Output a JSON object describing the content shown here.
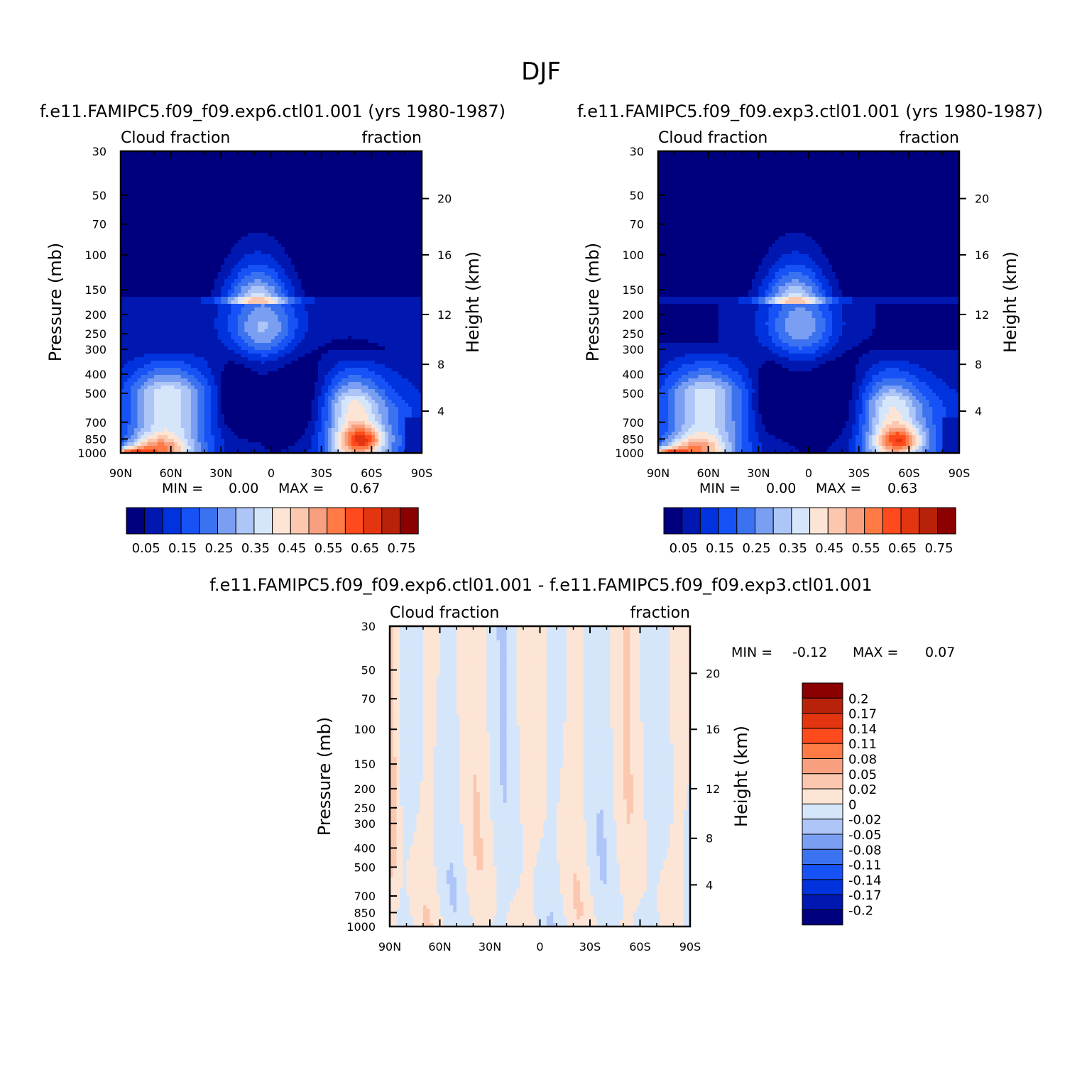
{
  "page_title": "DJF",
  "colors": {
    "main_scale": [
      "#00007f",
      "#0018b0",
      "#0033dd",
      "#1652f5",
      "#3b72f0",
      "#7a9ff2",
      "#adc5f7",
      "#d5e6fb",
      "#fde5d6",
      "#fbc7ae",
      "#f79f7e",
      "#ff7a44",
      "#ff4a1d",
      "#e23510",
      "#b8220a",
      "#8b0000"
    ],
    "diff_scale": [
      "#00007f",
      "#0018b0",
      "#0033dd",
      "#1652f5",
      "#3b72f0",
      "#7a9ff2",
      "#adc5f7",
      "#d5e6fb",
      "#fde5d6",
      "#fbc7ae",
      "#f79f7e",
      "#ff7a44",
      "#ff4a1d",
      "#e23510",
      "#b8220a",
      "#8b0000"
    ]
  },
  "panels": [
    {
      "title": "f.e11.FAMIPC5.f09_f09.exp6.ctl01.001 (yrs 1980-1987)",
      "left_label": "Cloud fraction",
      "right_label": "fraction",
      "stats": {
        "min_label": "MIN =",
        "min_value": "0.00",
        "max_label": "MAX =",
        "max_value": "0.67"
      }
    },
    {
      "title": "f.e11.FAMIPC5.f09_f09.exp3.ctl01.001 (yrs 1980-1987)",
      "left_label": "Cloud fraction",
      "right_label": "fraction",
      "stats": {
        "min_label": "MIN =",
        "min_value": "0.00",
        "max_label": "MAX =",
        "max_value": "0.63"
      }
    },
    {
      "title": "f.e11.FAMIPC5.f09_f09.exp6.ctl01.001 - f.e11.FAMIPC5.f09_f09.exp3.ctl01.001",
      "left_label": "Cloud fraction",
      "right_label": "fraction",
      "stats": {
        "min_label": "MIN =",
        "min_value": "-0.12",
        "max_label": "MAX =",
        "max_value": "0.07"
      }
    }
  ],
  "chart_data": [
    {
      "type": "heatmap",
      "title": "f.e11.FAMIPC5.f09_f09.exp6.ctl01.001 (yrs 1980-1987)",
      "xlabel": "",
      "ylabel": "Pressure (mb)",
      "y2label": "Height (km)",
      "x_ticks": [
        "90N",
        "60N",
        "30N",
        "0",
        "30S",
        "60S",
        "90S"
      ],
      "y_ticks": [
        "30",
        "50",
        "70",
        "100",
        "150",
        "200",
        "250",
        "300",
        "400",
        "500",
        "700",
        "850",
        "1000"
      ],
      "y2_ticks": [
        "20",
        "16",
        "12",
        "8",
        "4"
      ],
      "y_scale": "log",
      "ylim": [
        1000,
        30
      ],
      "colorbar_labels": [
        "0.05",
        "0.15",
        "0.25",
        "0.35",
        "0.45",
        "0.55",
        "0.65",
        "0.75"
      ],
      "min": 0.0,
      "max": 0.67
    },
    {
      "type": "heatmap",
      "title": "f.e11.FAMIPC5.f09_f09.exp3.ctl01.001 (yrs 1980-1987)",
      "xlabel": "",
      "ylabel": "Pressure (mb)",
      "y2label": "Height (km)",
      "x_ticks": [
        "90N",
        "60N",
        "30N",
        "0",
        "30S",
        "60S",
        "90S"
      ],
      "y_ticks": [
        "30",
        "50",
        "70",
        "100",
        "150",
        "200",
        "250",
        "300",
        "400",
        "500",
        "700",
        "850",
        "1000"
      ],
      "y2_ticks": [
        "20",
        "16",
        "12",
        "8",
        "4"
      ],
      "y_scale": "log",
      "ylim": [
        1000,
        30
      ],
      "colorbar_labels": [
        "0.05",
        "0.15",
        "0.25",
        "0.35",
        "0.45",
        "0.55",
        "0.65",
        "0.75"
      ],
      "min": 0.0,
      "max": 0.63
    },
    {
      "type": "heatmap",
      "title": "f.e11.FAMIPC5.f09_f09.exp6.ctl01.001 - f.e11.FAMIPC5.f09_f09.exp3.ctl01.001",
      "xlabel": "",
      "ylabel": "Pressure (mb)",
      "y2label": "Height (km)",
      "x_ticks": [
        "90N",
        "60N",
        "30N",
        "0",
        "30S",
        "60S",
        "90S"
      ],
      "y_ticks": [
        "30",
        "50",
        "70",
        "100",
        "150",
        "200",
        "250",
        "300",
        "400",
        "500",
        "700",
        "850",
        "1000"
      ],
      "y2_ticks": [
        "20",
        "16",
        "12",
        "8",
        "4"
      ],
      "y_scale": "log",
      "ylim": [
        1000,
        30
      ],
      "colorbar_labels": [
        "0.2",
        "0.17",
        "0.14",
        "0.11",
        "0.08",
        "0.05",
        "0.02",
        "0",
        "-0.02",
        "-0.05",
        "-0.08",
        "-0.11",
        "-0.14",
        "-0.17",
        "-0.2"
      ],
      "min": -0.12,
      "max": 0.07
    }
  ]
}
